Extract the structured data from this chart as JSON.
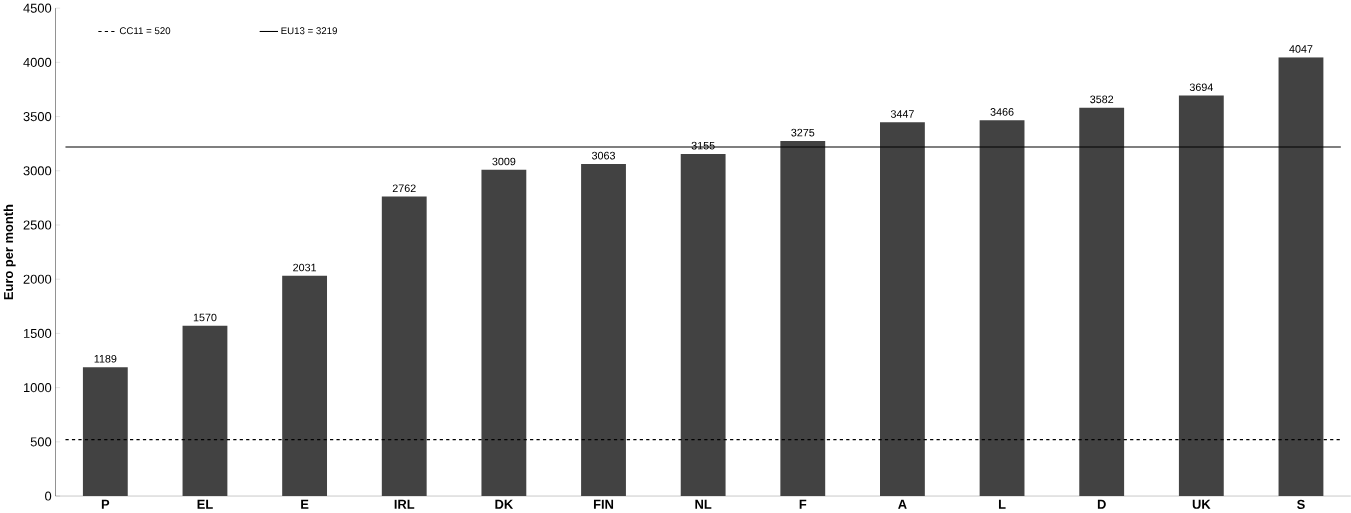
{
  "chart_data": {
    "type": "bar",
    "ylabel": "Euro per month",
    "categories": [
      "P",
      "EL",
      "E",
      "IRL",
      "DK",
      "FIN",
      "NL",
      "F",
      "A",
      "L",
      "D",
      "UK",
      "S"
    ],
    "values": [
      1189,
      1570,
      2031,
      2762,
      3009,
      3063,
      3155,
      3275,
      3447,
      3466,
      3582,
      3694,
      4047
    ],
    "color": "#424242",
    "data_labels": true,
    "ylim": [
      0,
      4500
    ],
    "yticks": [
      0,
      500,
      1000,
      1500,
      2000,
      2500,
      3000,
      3500,
      4000,
      4500
    ],
    "ref_lines": [
      {
        "axis": "y",
        "value": 520,
        "label": "CC11 = 520",
        "line_style": "dashed",
        "color": "#000000"
      },
      {
        "axis": "y",
        "value": 3219,
        "label": "EU13 = 3219",
        "line_style": "solid",
        "color": "#000000"
      }
    ],
    "legend": "top left",
    "grid": false
  }
}
